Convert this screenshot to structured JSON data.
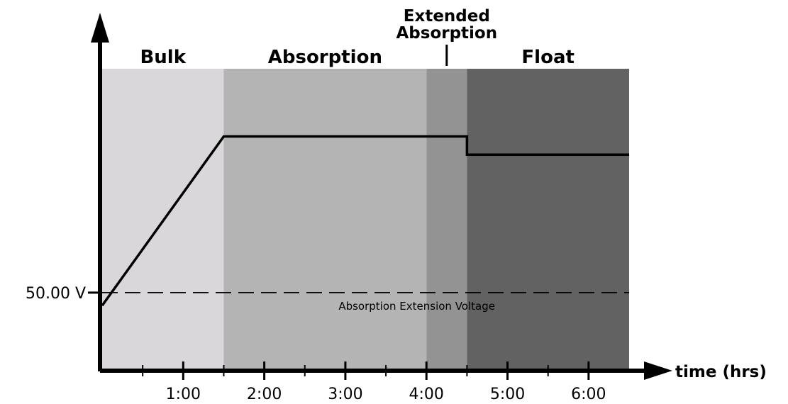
{
  "chart_data": {
    "type": "line",
    "xlabel": "time (hrs)",
    "ylabel": "",
    "xlim": [
      0,
      6.5
    ],
    "ylim": [
      47,
      58.6
    ],
    "x_ticks": [
      {
        "value": 1,
        "label": "1:00"
      },
      {
        "value": 2,
        "label": "2:00"
      },
      {
        "value": 3,
        "label": "3:00"
      },
      {
        "value": 4,
        "label": "4:00"
      },
      {
        "value": 5,
        "label": "5:00"
      },
      {
        "value": 6,
        "label": "6:00"
      }
    ],
    "x_minor_ticks": [
      0.5,
      1.5,
      2.5,
      3.5,
      4.5,
      5.5
    ],
    "phases": [
      {
        "name": "Bulk",
        "start": 0,
        "end": 1.5,
        "color": "#d9d7d9"
      },
      {
        "name": "Absorption",
        "start": 1.5,
        "end": 4.0,
        "color": "#b4b4b4"
      },
      {
        "name": "Extended Absorption",
        "start": 4.0,
        "end": 4.5,
        "color": "#939393"
      },
      {
        "name": "Float",
        "start": 4.5,
        "end": 6.5,
        "color": "#626262"
      }
    ],
    "series": [
      {
        "x": [
          0,
          1.5,
          4.5,
          4.5,
          6.5
        ],
        "y": [
          49.5,
          56.0,
          56.0,
          55.3,
          55.3
        ]
      }
    ],
    "reference_lines": [
      {
        "value": 50.0,
        "tick_label": "50.00 V",
        "label": "Absorption Extension Voltage",
        "style": "dashed"
      }
    ],
    "grid": false,
    "legend": "none"
  }
}
